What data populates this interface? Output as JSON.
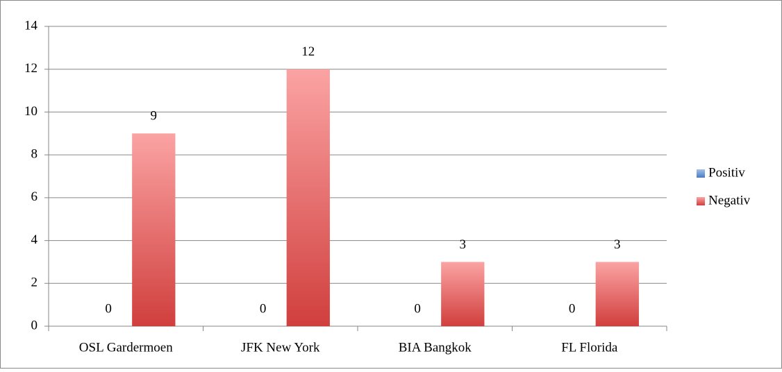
{
  "chart_data": {
    "type": "bar",
    "categories": [
      "OSL Gardermoen",
      "JFK New York",
      "BIA Bangkok",
      "FL Florida"
    ],
    "series": [
      {
        "name": "Positiv",
        "color": "#4f81bd",
        "values": [
          0,
          0,
          0,
          0
        ]
      },
      {
        "name": "Negativ",
        "color": "#c0504d",
        "values": [
          9,
          12,
          3,
          3
        ]
      }
    ],
    "ylim": [
      0,
      14
    ],
    "yticks": [
      0,
      2,
      4,
      6,
      8,
      10,
      12,
      14
    ],
    "grid": true,
    "legend": "right"
  }
}
